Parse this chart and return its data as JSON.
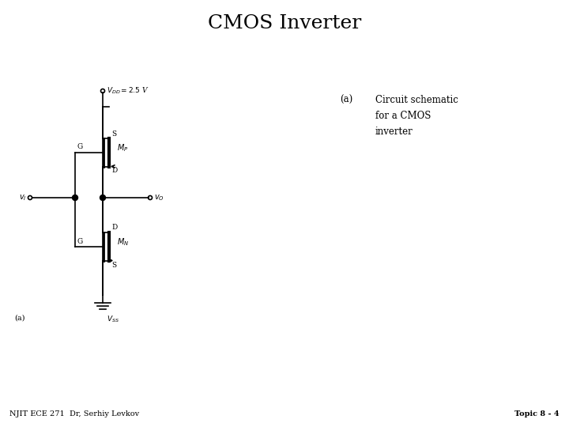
{
  "title": "CMOS Inverter",
  "title_fontsize": 18,
  "title_font": "serif",
  "bg_color": "#ffffff",
  "line_color": "#000000",
  "text_color": "#000000",
  "label_a": "(a)",
  "label_a_desc": "Circuit schematic\nfor a CMOS\ninverter",
  "footer_left": "NJIT ECE 271  Dr, Serhiy Levkov",
  "footer_right": "Topic 8 - 4",
  "vdd_label": "$V_{DD} = 2.5$ V",
  "vss_label": "$V_{SS}$",
  "vi_label": "$v_I$",
  "vo_label": "$v_O$",
  "mp_label": "$M_P$",
  "mn_label": "$M_N$",
  "s_label": "S",
  "d_label": "D",
  "g_label": "G"
}
